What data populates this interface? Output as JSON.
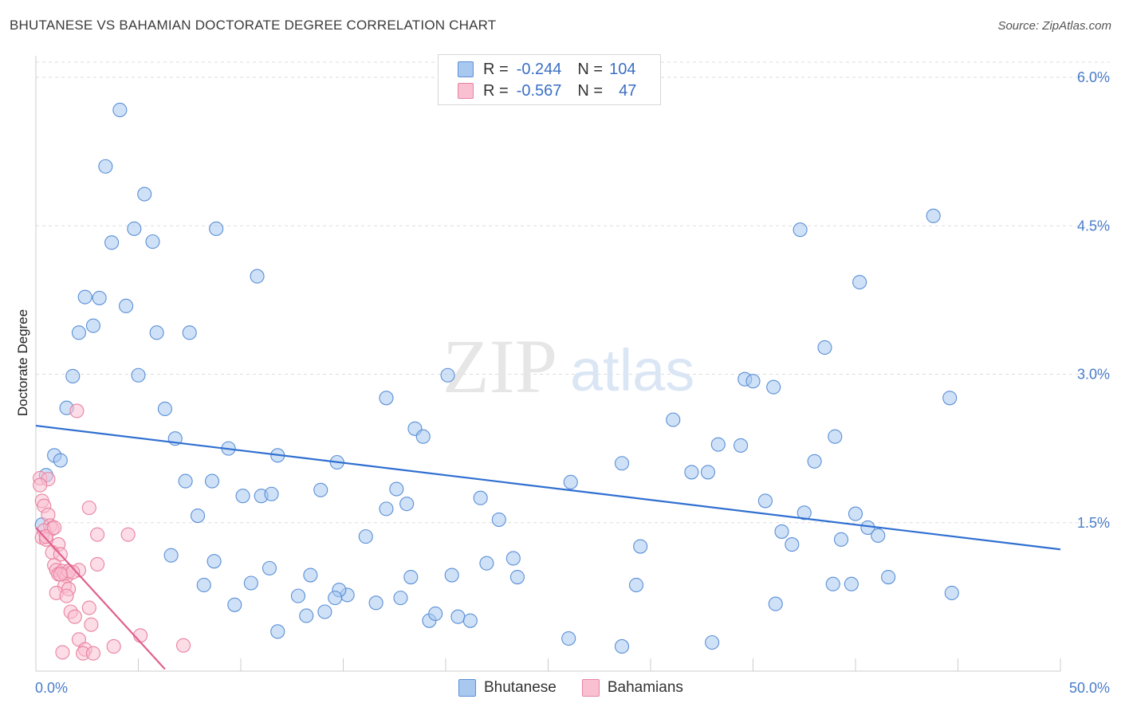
{
  "title": "BHUTANESE VS BAHAMIAN DOCTORATE DEGREE CORRELATION CHART",
  "source": "Source: ZipAtlas.com",
  "watermark": {
    "zip": "ZIP",
    "atlas": "atlas"
  },
  "legend": {
    "rows": [
      {
        "r_label": "R =",
        "r_value": "-0.244",
        "n_label": "N =",
        "n_value": "104",
        "color": "#a8c8f0",
        "border": "#5a8fd6"
      },
      {
        "r_label": "R =",
        "r_value": "-0.567",
        "n_label": "N =",
        "n_value": "47",
        "color": "#f9c0d2",
        "border": "#e8829f"
      }
    ],
    "series": [
      "Bhutanese",
      "Bahamians"
    ]
  },
  "chart_data": {
    "type": "scatter",
    "title": "BHUTANESE VS BAHAMIAN DOCTORATE DEGREE CORRELATION CHART",
    "xlabel": "",
    "ylabel": "Doctorate Degree",
    "xlim": [
      0,
      50
    ],
    "ylim": [
      0,
      6.2
    ],
    "x_tick_labels": [
      "0.0%",
      "50.0%"
    ],
    "y_ticks": [
      1.5,
      3.0,
      4.5,
      6.0
    ],
    "y_tick_labels": [
      "1.5%",
      "3.0%",
      "4.5%",
      "6.0%"
    ],
    "grid": true,
    "series": [
      {
        "name": "Bhutanese",
        "color": "#a8c8f0",
        "stroke": "#5a8fd6",
        "line_color": "#2f6fd0",
        "trend": {
          "x": [
            0,
            50
          ],
          "y": [
            2.48,
            1.23
          ]
        },
        "points": [
          [
            4.1,
            5.67
          ],
          [
            3.4,
            5.1
          ],
          [
            5.3,
            4.82
          ],
          [
            4.8,
            4.47
          ],
          [
            3.7,
            4.33
          ],
          [
            5.7,
            4.34
          ],
          [
            8.8,
            4.47
          ],
          [
            10.8,
            3.99
          ],
          [
            2.4,
            3.78
          ],
          [
            3.1,
            3.77
          ],
          [
            4.4,
            3.69
          ],
          [
            2.1,
            3.42
          ],
          [
            2.8,
            3.49
          ],
          [
            5.9,
            3.42
          ],
          [
            7.5,
            3.42
          ],
          [
            1.8,
            2.98
          ],
          [
            5.0,
            2.99
          ],
          [
            1.5,
            2.66
          ],
          [
            6.3,
            2.65
          ],
          [
            6.8,
            2.35
          ],
          [
            9.4,
            2.25
          ],
          [
            11.8,
            2.18
          ],
          [
            0.9,
            2.18
          ],
          [
            1.2,
            2.13
          ],
          [
            0.5,
            1.98
          ],
          [
            7.3,
            1.92
          ],
          [
            8.6,
            1.92
          ],
          [
            10.1,
            1.77
          ],
          [
            11.0,
            1.77
          ],
          [
            11.5,
            1.79
          ],
          [
            13.9,
            1.83
          ],
          [
            14.7,
            2.11
          ],
          [
            7.9,
            1.57
          ],
          [
            17.1,
            2.76
          ],
          [
            18.5,
            2.45
          ],
          [
            18.9,
            2.37
          ],
          [
            20.1,
            2.99
          ],
          [
            17.6,
            1.84
          ],
          [
            17.1,
            1.64
          ],
          [
            18.1,
            1.69
          ],
          [
            21.7,
            1.75
          ],
          [
            22.6,
            1.53
          ],
          [
            16.1,
            1.36
          ],
          [
            26.1,
            1.91
          ],
          [
            28.6,
            2.1
          ],
          [
            29.5,
            1.26
          ],
          [
            29.3,
            0.87
          ],
          [
            31.1,
            2.54
          ],
          [
            32.0,
            2.01
          ],
          [
            32.8,
            2.01
          ],
          [
            33.3,
            2.29
          ],
          [
            34.4,
            2.28
          ],
          [
            34.6,
            2.95
          ],
          [
            35.0,
            2.93
          ],
          [
            36.0,
            2.87
          ],
          [
            36.4,
            1.41
          ],
          [
            36.9,
            1.28
          ],
          [
            37.5,
            1.6
          ],
          [
            36.1,
            0.68
          ],
          [
            33.0,
            0.29
          ],
          [
            28.6,
            0.25
          ],
          [
            26.0,
            0.33
          ],
          [
            23.5,
            0.95
          ],
          [
            22.0,
            1.09
          ],
          [
            20.3,
            0.97
          ],
          [
            18.3,
            0.95
          ],
          [
            17.8,
            0.74
          ],
          [
            16.6,
            0.69
          ],
          [
            15.2,
            0.77
          ],
          [
            14.8,
            0.82
          ],
          [
            13.4,
            0.97
          ],
          [
            12.8,
            0.76
          ],
          [
            11.4,
            1.04
          ],
          [
            10.5,
            0.89
          ],
          [
            9.7,
            0.67
          ],
          [
            8.7,
            1.11
          ],
          [
            8.2,
            0.87
          ],
          [
            6.6,
            1.17
          ],
          [
            11.8,
            0.4
          ],
          [
            13.2,
            0.56
          ],
          [
            14.1,
            0.6
          ],
          [
            14.6,
            0.74
          ],
          [
            19.2,
            0.51
          ],
          [
            19.5,
            0.58
          ],
          [
            20.6,
            0.55
          ],
          [
            21.2,
            0.51
          ],
          [
            23.3,
            1.14
          ],
          [
            37.3,
            4.46
          ],
          [
            39.3,
            1.33
          ],
          [
            38.0,
            2.12
          ],
          [
            38.5,
            3.27
          ],
          [
            39.0,
            2.37
          ],
          [
            40.2,
            3.93
          ],
          [
            40.0,
            1.59
          ],
          [
            40.6,
            1.45
          ],
          [
            41.1,
            1.37
          ],
          [
            44.6,
            2.76
          ],
          [
            41.6,
            0.95
          ],
          [
            43.8,
            4.6
          ],
          [
            44.7,
            0.79
          ],
          [
            38.9,
            0.88
          ],
          [
            39.8,
            0.88
          ],
          [
            35.6,
            1.72
          ],
          [
            0.3,
            1.48
          ]
        ]
      },
      {
        "name": "Bahamians",
        "color": "#f9c0d2",
        "stroke": "#e8829f",
        "line_color": "#e0608e",
        "trend": {
          "x": [
            0,
            6.3
          ],
          "y": [
            1.45,
            0.02
          ]
        },
        "points": [
          [
            0.2,
            1.95
          ],
          [
            0.6,
            1.94
          ],
          [
            0.3,
            1.72
          ],
          [
            0.4,
            1.67
          ],
          [
            0.6,
            1.58
          ],
          [
            0.7,
            1.47
          ],
          [
            0.8,
            1.44
          ],
          [
            0.4,
            1.42
          ],
          [
            0.3,
            1.35
          ],
          [
            0.5,
            1.33
          ],
          [
            1.1,
            1.28
          ],
          [
            0.8,
            1.2
          ],
          [
            1.2,
            1.18
          ],
          [
            0.9,
            1.07
          ],
          [
            1.0,
            1.02
          ],
          [
            1.1,
            0.98
          ],
          [
            1.3,
            1.01
          ],
          [
            1.4,
            0.98
          ],
          [
            1.5,
            0.96
          ],
          [
            1.4,
            0.86
          ],
          [
            1.6,
            0.83
          ],
          [
            1.0,
            0.79
          ],
          [
            1.5,
            0.76
          ],
          [
            2.1,
            1.02
          ],
          [
            2.6,
            0.64
          ],
          [
            1.7,
            0.6
          ],
          [
            1.9,
            0.55
          ],
          [
            2.7,
            0.47
          ],
          [
            2.1,
            0.32
          ],
          [
            2.4,
            0.22
          ],
          [
            2.3,
            0.18
          ],
          [
            2.8,
            0.18
          ],
          [
            1.3,
            0.19
          ],
          [
            3.8,
            0.25
          ],
          [
            5.1,
            0.36
          ],
          [
            7.2,
            0.26
          ],
          [
            3.0,
            1.38
          ],
          [
            4.5,
            1.38
          ],
          [
            2.6,
            1.65
          ],
          [
            2.0,
            2.63
          ],
          [
            3.0,
            1.08
          ],
          [
            0.2,
            1.88
          ],
          [
            0.5,
            1.36
          ],
          [
            1.6,
            1.01
          ],
          [
            1.8,
            1.0
          ],
          [
            1.2,
            0.98
          ],
          [
            0.9,
            1.45
          ]
        ]
      }
    ]
  }
}
